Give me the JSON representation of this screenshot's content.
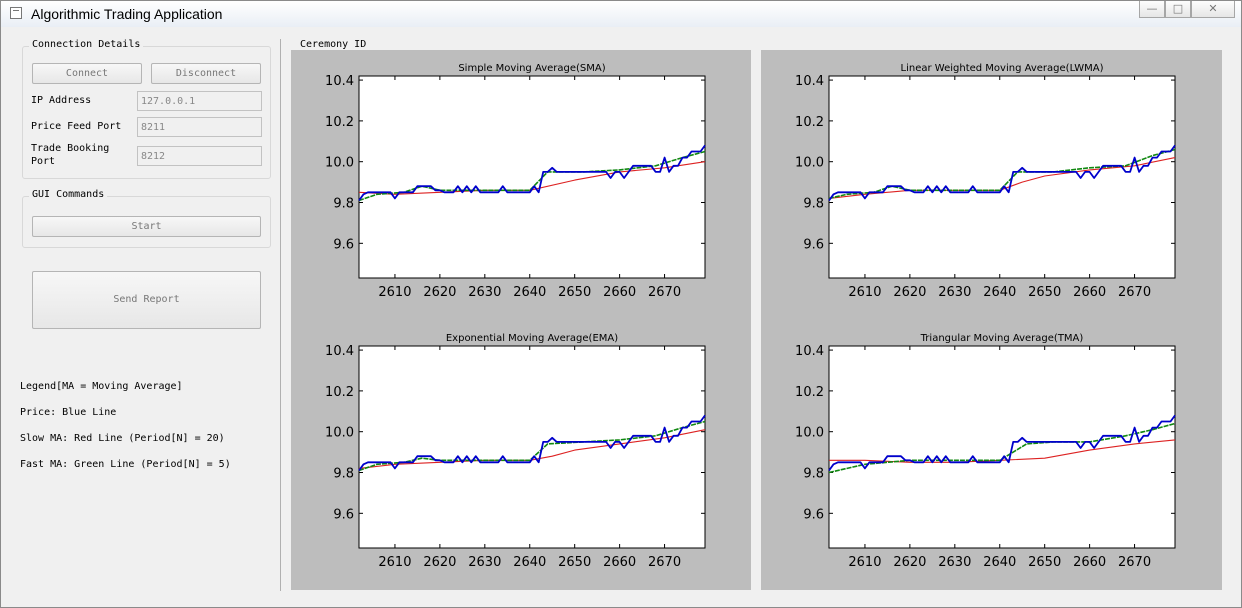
{
  "window": {
    "title": "Algorithmic Trading Application"
  },
  "connection": {
    "title": "Connection Details",
    "connect_label": "Connect",
    "disconnect_label": "Disconnect",
    "ip_label": "IP Address",
    "ip_value": "127.0.0.1",
    "price_port_label": "Price Feed Port",
    "price_port_value": "8211",
    "trade_port_label_1": "Trade Booking",
    "trade_port_label_2": "Port",
    "trade_port_value": "8212"
  },
  "gui_commands": {
    "title": "GUI Commands",
    "start_label": "Start"
  },
  "send_report_label": "Send Report",
  "legend": {
    "title": "Legend[MA = Moving Average]",
    "price": "Price: Blue Line",
    "slow": "Slow MA: Red Line (Period[N] = 20)",
    "fast": "Fast MA: Green Line (Period[N] = 5)"
  },
  "plot_area_label": "Ceremony ID",
  "colors": {
    "price": "#0000cc",
    "slow": "#dd2222",
    "fast": "#118811",
    "panel": "#bdbdbd"
  },
  "price_series": {
    "x": [
      2602,
      2603,
      2604,
      2605,
      2606,
      2607,
      2608,
      2609,
      2610,
      2611,
      2612,
      2613,
      2614,
      2615,
      2616,
      2617,
      2618,
      2619,
      2620,
      2621,
      2622,
      2623,
      2624,
      2625,
      2626,
      2627,
      2628,
      2629,
      2630,
      2631,
      2632,
      2633,
      2634,
      2635,
      2636,
      2637,
      2638,
      2639,
      2640,
      2641,
      2642,
      2643,
      2644,
      2645,
      2646,
      2647,
      2648,
      2649,
      2650,
      2651,
      2652,
      2653,
      2654,
      2655,
      2656,
      2657,
      2658,
      2659,
      2660,
      2661,
      2662,
      2663,
      2664,
      2665,
      2666,
      2667,
      2668,
      2669,
      2670,
      2671,
      2672,
      2673,
      2674,
      2675,
      2676,
      2677,
      2678,
      2679
    ],
    "y": [
      9.81,
      9.84,
      9.85,
      9.85,
      9.85,
      9.85,
      9.85,
      9.85,
      9.82,
      9.85,
      9.85,
      9.85,
      9.85,
      9.88,
      9.88,
      9.88,
      9.88,
      9.86,
      9.86,
      9.85,
      9.85,
      9.85,
      9.88,
      9.85,
      9.88,
      9.85,
      9.88,
      9.85,
      9.85,
      9.85,
      9.85,
      9.85,
      9.88,
      9.85,
      9.85,
      9.85,
      9.85,
      9.85,
      9.85,
      9.88,
      9.85,
      9.95,
      9.95,
      9.97,
      9.95,
      9.95,
      9.95,
      9.95,
      9.95,
      9.95,
      9.95,
      9.95,
      9.95,
      9.95,
      9.95,
      9.95,
      9.92,
      9.95,
      9.95,
      9.92,
      9.95,
      9.98,
      9.98,
      9.98,
      9.98,
      9.98,
      9.95,
      9.95,
      10.02,
      9.95,
      9.98,
      9.98,
      10.02,
      10.02,
      10.05,
      10.05,
      10.05,
      10.08
    ]
  },
  "chart_data": [
    {
      "type": "line",
      "title": "Simple Moving Average(SMA)",
      "xlim": [
        2602,
        2679
      ],
      "ylim": [
        9.43,
        10.42
      ],
      "xticks": [
        2610,
        2620,
        2630,
        2640,
        2650,
        2660,
        2670
      ],
      "yticks": [
        9.6,
        9.8,
        10.0,
        10.2,
        10.4
      ],
      "grid": false,
      "series": [
        {
          "role": "price",
          "source": "price_series"
        },
        {
          "role": "fast",
          "x": [
            2602,
            2606,
            2612,
            2616,
            2620,
            2630,
            2640,
            2644,
            2652,
            2660,
            2668,
            2674,
            2679
          ],
          "y": [
            9.81,
            9.84,
            9.85,
            9.88,
            9.86,
            9.86,
            9.86,
            9.95,
            9.95,
            9.96,
            9.98,
            10.02,
            10.05
          ]
        },
        {
          "role": "slow",
          "x": [
            2602,
            2610,
            2620,
            2630,
            2640,
            2650,
            2660,
            2670,
            2679
          ],
          "y": [
            9.85,
            9.84,
            9.85,
            9.86,
            9.86,
            9.91,
            9.95,
            9.97,
            10.0
          ]
        }
      ]
    },
    {
      "type": "line",
      "title": "Linear Weighted Moving Average(LWMA)",
      "xlim": [
        2602,
        2679
      ],
      "ylim": [
        9.43,
        10.42
      ],
      "xticks": [
        2610,
        2620,
        2630,
        2640,
        2650,
        2660,
        2670
      ],
      "yticks": [
        9.6,
        9.8,
        10.0,
        10.2,
        10.4
      ],
      "grid": false,
      "series": [
        {
          "role": "price",
          "source": "price_series"
        },
        {
          "role": "fast",
          "x": [
            2602,
            2606,
            2612,
            2616,
            2620,
            2630,
            2640,
            2644,
            2652,
            2660,
            2668,
            2674,
            2679
          ],
          "y": [
            9.82,
            9.84,
            9.85,
            9.88,
            9.86,
            9.86,
            9.86,
            9.95,
            9.95,
            9.97,
            9.98,
            10.03,
            10.06
          ]
        },
        {
          "role": "slow",
          "x": [
            2602,
            2610,
            2620,
            2630,
            2640,
            2645,
            2650,
            2660,
            2670,
            2679
          ],
          "y": [
            9.82,
            9.84,
            9.86,
            9.86,
            9.86,
            9.9,
            9.93,
            9.96,
            9.98,
            10.02
          ]
        }
      ]
    },
    {
      "type": "line",
      "title": "Exponential Moving Average(EMA)",
      "xlim": [
        2602,
        2679
      ],
      "ylim": [
        9.43,
        10.42
      ],
      "xticks": [
        2610,
        2620,
        2630,
        2640,
        2650,
        2660,
        2670
      ],
      "yticks": [
        9.6,
        9.8,
        10.0,
        10.2,
        10.4
      ],
      "grid": false,
      "series": [
        {
          "role": "price",
          "source": "price_series"
        },
        {
          "role": "fast",
          "x": [
            2602,
            2606,
            2612,
            2616,
            2620,
            2630,
            2640,
            2644,
            2652,
            2660,
            2668,
            2674,
            2679
          ],
          "y": [
            9.81,
            9.84,
            9.85,
            9.87,
            9.86,
            9.86,
            9.86,
            9.94,
            9.95,
            9.96,
            9.98,
            10.02,
            10.05
          ]
        },
        {
          "role": "slow",
          "x": [
            2602,
            2610,
            2620,
            2630,
            2640,
            2645,
            2650,
            2660,
            2670,
            2679
          ],
          "y": [
            9.82,
            9.84,
            9.85,
            9.86,
            9.86,
            9.88,
            9.91,
            9.94,
            9.97,
            10.01
          ]
        }
      ]
    },
    {
      "type": "line",
      "title": "Triangular Moving Average(TMA)",
      "xlim": [
        2602,
        2679
      ],
      "ylim": [
        9.43,
        10.42
      ],
      "xticks": [
        2610,
        2620,
        2630,
        2640,
        2650,
        2660,
        2670
      ],
      "yticks": [
        9.6,
        9.8,
        10.0,
        10.2,
        10.4
      ],
      "grid": false,
      "series": [
        {
          "role": "price",
          "source": "price_series"
        },
        {
          "role": "fast",
          "x": [
            2602,
            2610,
            2620,
            2630,
            2640,
            2646,
            2652,
            2660,
            2668,
            2674,
            2679
          ],
          "y": [
            9.8,
            9.84,
            9.86,
            9.86,
            9.86,
            9.94,
            9.95,
            9.95,
            9.98,
            10.01,
            10.04
          ]
        },
        {
          "role": "slow",
          "x": [
            2602,
            2610,
            2620,
            2630,
            2640,
            2650,
            2660,
            2670,
            2679
          ],
          "y": [
            9.86,
            9.86,
            9.85,
            9.85,
            9.86,
            9.87,
            9.91,
            9.94,
            9.96
          ]
        }
      ]
    }
  ]
}
